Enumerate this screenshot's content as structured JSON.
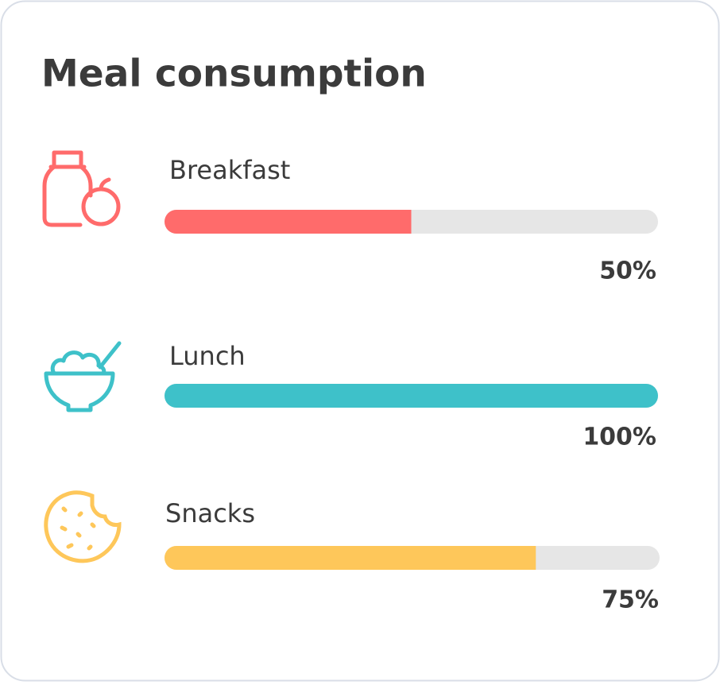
{
  "chart_data": {
    "type": "progress",
    "title": "Meal consumption",
    "categories": [
      "Breakfast",
      "Lunch",
      "Snacks"
    ],
    "values": [
      50,
      100,
      75
    ],
    "value_labels": [
      "50%",
      "100%",
      "75%"
    ],
    "colors": [
      "#ff6b6b",
      "#3ec1c9",
      "#fec75a"
    ],
    "xlim": [
      0,
      100
    ]
  }
}
